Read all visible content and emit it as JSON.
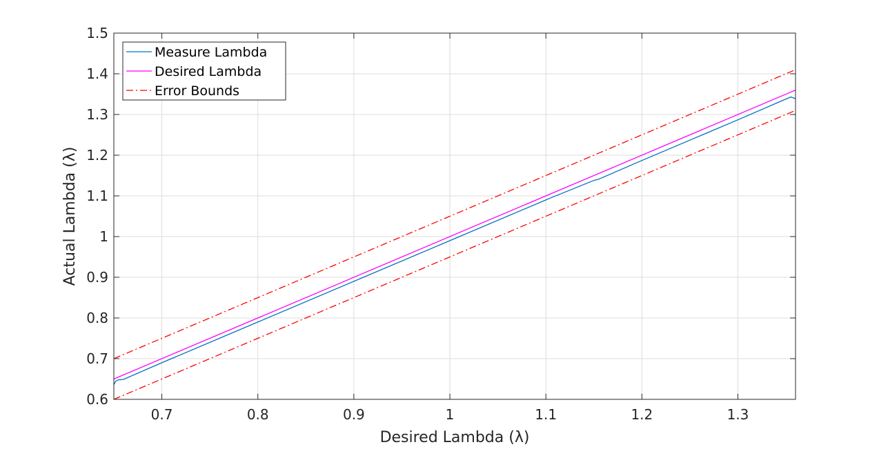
{
  "chart_data": {
    "type": "line",
    "title": "",
    "xlabel": "Desired Lambda (λ)",
    "ylabel": "Actual Lambda (λ)",
    "xlim": [
      0.65,
      1.36
    ],
    "ylim": [
      0.6,
      1.5
    ],
    "xticks": [
      0.7,
      0.8,
      0.9,
      1,
      1.1,
      1.2,
      1.3
    ],
    "xtick_labels": [
      "0.7",
      "0.8",
      "0.9",
      "1",
      "1.1",
      "1.2",
      "1.3"
    ],
    "yticks": [
      0.6,
      0.7,
      0.8,
      0.9,
      1,
      1.1,
      1.2,
      1.3,
      1.4,
      1.5
    ],
    "ytick_labels": [
      "0.6",
      "0.7",
      "0.8",
      "0.9",
      "1",
      "1.1",
      "1.2",
      "1.3",
      "1.4",
      "1.5"
    ],
    "grid": true,
    "legend_position": "top-left",
    "series": [
      {
        "name": "Measure Lambda",
        "color": "#0072BD",
        "style": "solid",
        "x": [
          0.65,
          0.652,
          0.655,
          0.66,
          0.7,
          0.8,
          0.9,
          1.0,
          1.1,
          1.105,
          1.15,
          1.155,
          1.2,
          1.3,
          1.355,
          1.36
        ],
        "y": [
          0.636,
          0.645,
          0.648,
          0.649,
          0.69,
          0.79,
          0.89,
          0.99,
          1.09,
          1.095,
          1.138,
          1.141,
          1.187,
          1.287,
          1.343,
          1.339
        ]
      },
      {
        "name": "Desired Lambda",
        "color": "#FF00FF",
        "style": "solid",
        "x": [
          0.65,
          1.36
        ],
        "y": [
          0.65,
          1.36
        ]
      },
      {
        "name": "Error Bounds",
        "color": "#FF0000",
        "style": "dashdot",
        "x": [
          0.65,
          1.36
        ],
        "y": [
          0.7,
          1.41
        ]
      },
      {
        "color": "#FF0000",
        "style": "dashdot",
        "x": [
          0.65,
          1.36
        ],
        "y": [
          0.6,
          1.31
        ]
      }
    ]
  }
}
